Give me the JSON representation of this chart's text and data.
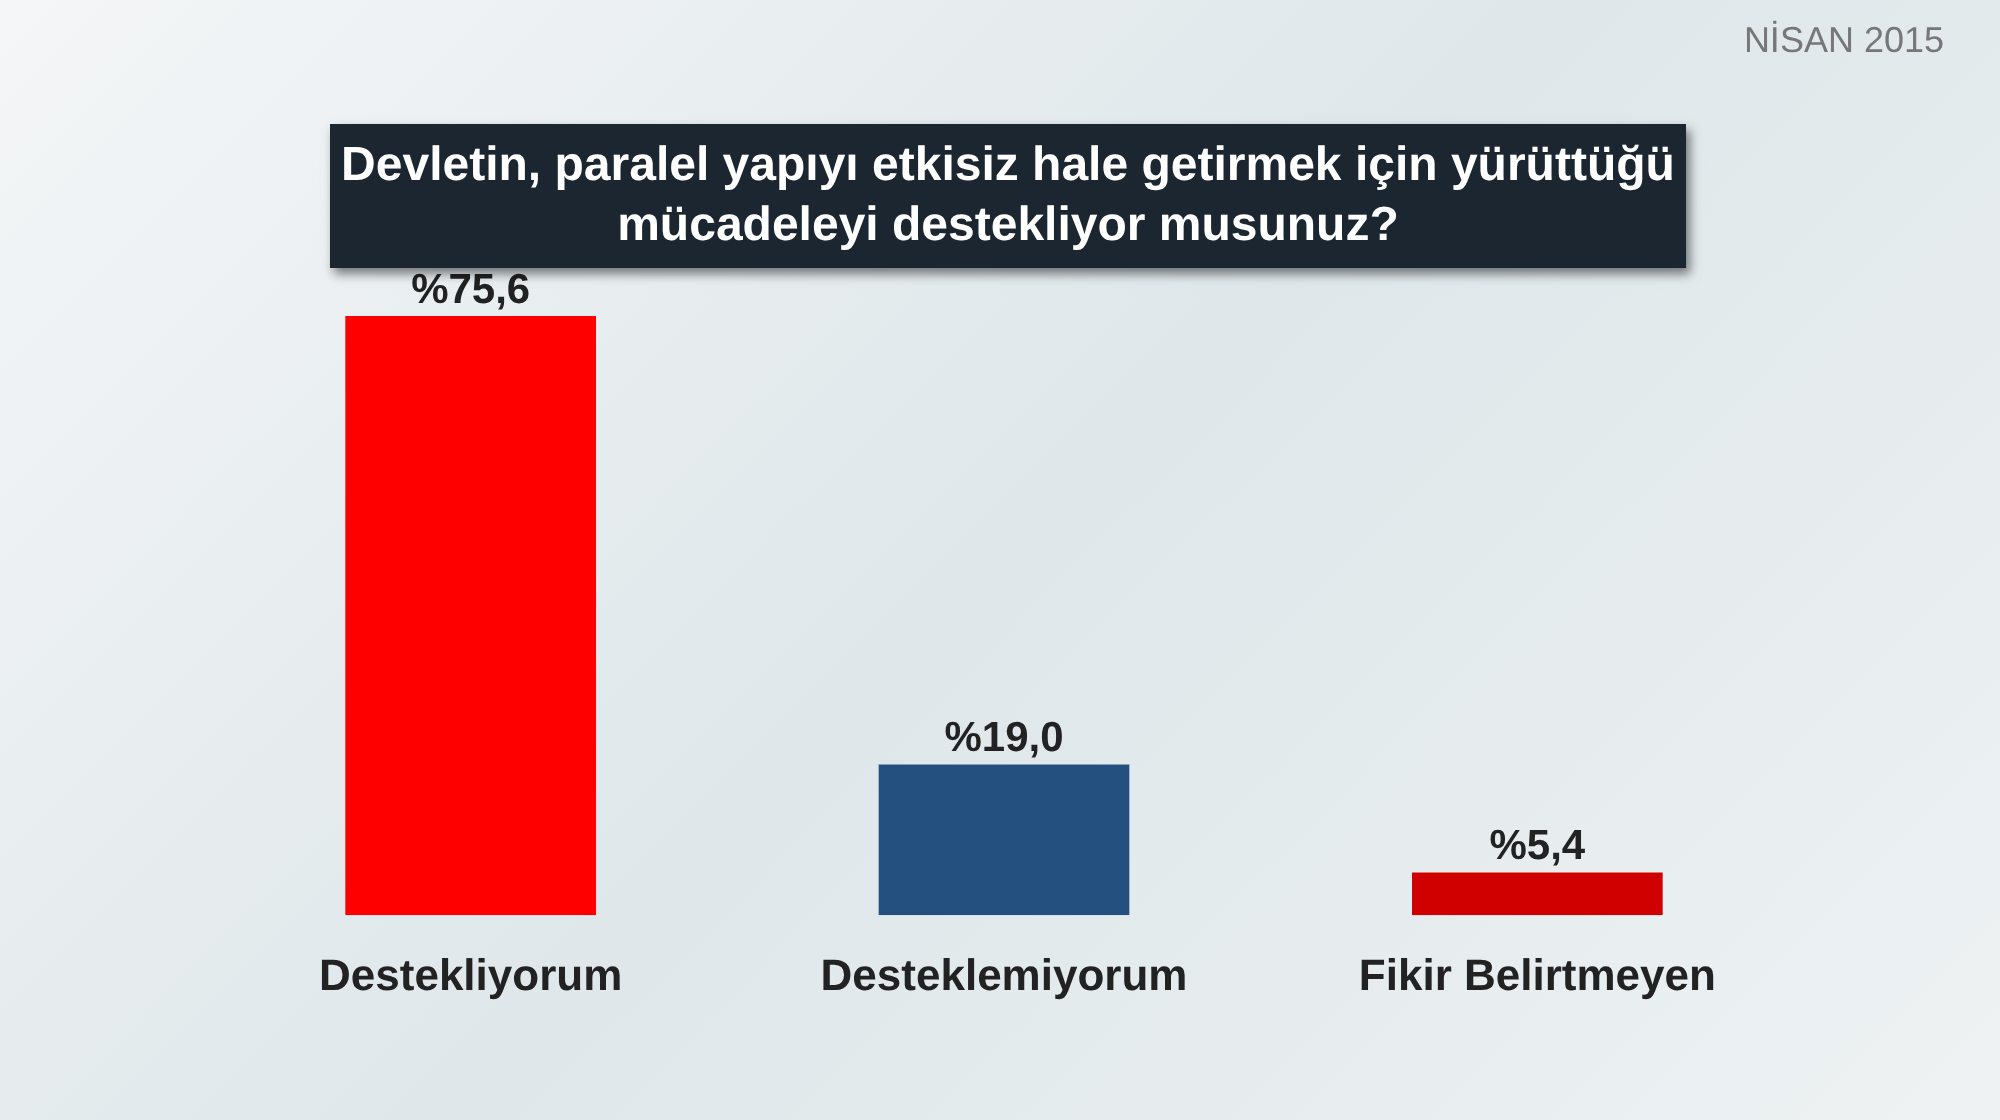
{
  "chart_data": {
    "type": "bar",
    "title": "Devletin, paralel yapıyı etkisiz hale getirmek için yürüttüğü mücadeleyi destekliyor musunuz?",
    "annotations": [
      "NİSAN 2015"
    ],
    "categories": [
      "Destekliyorum",
      "Desteklemiyorum",
      "Fikir Belirtmeyen"
    ],
    "values": [
      75.6,
      19.0,
      5.4
    ],
    "colors": [
      "#ff0000",
      "#23507f",
      "#d10000"
    ],
    "value_labels": [
      "%75,6",
      "%19,0",
      "%5,4"
    ],
    "grid": false,
    "legend": false,
    "tick_labels": "x"
  }
}
